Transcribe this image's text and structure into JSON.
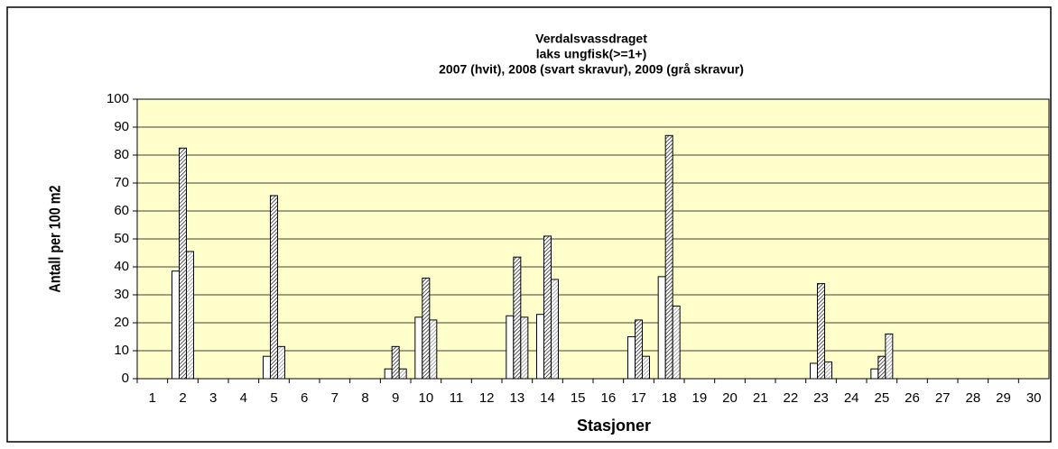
{
  "chart_data": {
    "type": "bar",
    "title": [
      "Verdalsvassdraget",
      "laks ungfisk(>=1+)",
      "2007 (hvit),  2008 (svart skravur), 2009 (grå skravur)"
    ],
    "x_label": "Stasjoner",
    "y_label": "Antall per 100 m2",
    "categories": [
      "1",
      "2",
      "3",
      "4",
      "5",
      "6",
      "7",
      "8",
      "9",
      "10",
      "11",
      "12",
      "13",
      "14",
      "15",
      "16",
      "17",
      "18",
      "19",
      "20",
      "21",
      "22",
      "23",
      "24",
      "25",
      "26",
      "27",
      "28",
      "29",
      "30"
    ],
    "series": [
      {
        "color": "#ffffff",
        "pattern": "none",
        "values": [
          null,
          38.5,
          null,
          null,
          8,
          null,
          null,
          null,
          3.5,
          22,
          null,
          null,
          22.5,
          23,
          null,
          null,
          15,
          36.5,
          null,
          null,
          null,
          null,
          5.5,
          null,
          3.5,
          null,
          null,
          null,
          null,
          null
        ]
      },
      {
        "color": "#000000",
        "pattern": "hatch",
        "values": [
          null,
          82.5,
          null,
          null,
          65.5,
          null,
          null,
          null,
          11.5,
          36,
          null,
          null,
          43.5,
          51,
          null,
          null,
          21,
          87,
          null,
          null,
          null,
          null,
          34,
          null,
          8,
          null,
          null,
          null,
          null,
          null
        ]
      },
      {
        "color": "#808080",
        "pattern": "hatch",
        "values": [
          null,
          45.5,
          null,
          null,
          11.5,
          null,
          null,
          null,
          3.5,
          21,
          null,
          null,
          22,
          35.5,
          null,
          null,
          8,
          26,
          null,
          null,
          null,
          null,
          6,
          null,
          16,
          null,
          null,
          null,
          null,
          null
        ]
      }
    ],
    "ylim": [
      0,
      100
    ],
    "yticks": [
      0,
      10,
      20,
      30,
      40,
      50,
      60,
      70,
      80,
      90,
      100
    ],
    "grid": true,
    "plot_background": "#ffffcc"
  }
}
